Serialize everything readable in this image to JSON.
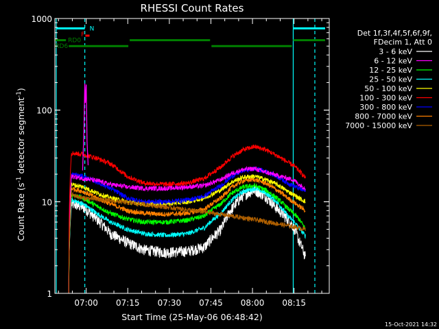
{
  "chart_data": {
    "type": "line",
    "title": "RHESSI Count Rates",
    "xlabel": "Start Time (25-May-06 06:48:42)",
    "ylabel": "Count Rate (s",
    "ylabel_sup": "-1",
    "ylabel_tail": " detector segment",
    "ylabel_sup2": "-1",
    "ylabel_close": ")",
    "x_unit": "minutes after 06:48:42",
    "xlim": [
      0,
      99
    ],
    "yscale": "log",
    "ylim": [
      1,
      1000
    ],
    "x_ticks": [
      {
        "t": 11.3,
        "label": "07:00"
      },
      {
        "t": 26.3,
        "label": "07:15"
      },
      {
        "t": 41.3,
        "label": "07:30"
      },
      {
        "t": 56.3,
        "label": "07:45"
      },
      {
        "t": 71.3,
        "label": "08:00"
      },
      {
        "t": 86.3,
        "label": "08:15"
      }
    ],
    "y_ticks": [
      {
        "v": 1,
        "label": "1"
      },
      {
        "v": 10,
        "label": "10"
      },
      {
        "v": 100,
        "label": "100"
      },
      {
        "v": 1000,
        "label": "1000"
      }
    ],
    "legend": {
      "header1": "Det 1f,3f,4f,5f,6f,9f,",
      "header2": "FDecim 1, Att 0",
      "placement": "right"
    },
    "series": [
      {
        "name": "3 - 6 keV",
        "color": "#ffffff",
        "start": 5.0,
        "end": 90.5,
        "t": [
          5,
          6,
          10,
          15,
          20,
          26,
          32,
          40,
          48,
          54,
          60,
          64,
          68,
          72,
          76,
          80,
          84,
          86,
          88,
          90.5
        ],
        "v": [
          1.2,
          9.5,
          8.8,
          6.5,
          4.5,
          3.6,
          3.0,
          2.8,
          2.9,
          3.2,
          5.0,
          8.5,
          11.8,
          13.5,
          11.5,
          8.5,
          6.4,
          5.4,
          3.8,
          2.4
        ]
      },
      {
        "name": "6 - 12 keV",
        "color": "#ff00ff",
        "start": 5.0,
        "end": 90.5,
        "t": [
          5,
          6,
          10,
          15,
          20,
          26,
          32,
          40,
          48,
          54,
          60,
          64,
          68,
          72,
          76,
          80,
          84,
          86,
          88,
          90.5
        ],
        "v": [
          1.0,
          19,
          18,
          17,
          15.5,
          14.5,
          14,
          14,
          14.5,
          15,
          17.5,
          20.5,
          22.5,
          23,
          21,
          19.5,
          18,
          17.5,
          15.5,
          14
        ]
      },
      {
        "name": "12 - 25 keV",
        "color": "#00ff00",
        "start": 5.0,
        "end": 90.5,
        "t": [
          5,
          6,
          10,
          15,
          20,
          26,
          32,
          40,
          48,
          54,
          60,
          64,
          68,
          72,
          76,
          80,
          84,
          86,
          88,
          90.5
        ],
        "v": [
          1.0,
          12,
          11,
          9,
          7.5,
          6.5,
          6,
          6,
          6.3,
          7,
          9.5,
          12.5,
          14.5,
          15,
          13.5,
          11,
          8.5,
          7.5,
          6.5,
          5
        ]
      },
      {
        "name": "25 - 50 keV",
        "color": "#00ffff",
        "start": 5.0,
        "end": 90.5,
        "t": [
          5,
          6,
          10,
          15,
          20,
          26,
          32,
          40,
          48,
          54,
          60,
          64,
          68,
          72,
          76,
          80,
          84,
          86,
          88,
          90.5
        ],
        "v": [
          1.0,
          10.5,
          9.5,
          7.5,
          6.0,
          5.0,
          4.5,
          4.3,
          4.5,
          5.2,
          7.5,
          10.5,
          13,
          14,
          12.5,
          10,
          7,
          6.2,
          5.2,
          4.2
        ]
      },
      {
        "name": "50 - 100 keV",
        "color": "#ffff00",
        "start": 5.0,
        "end": 90.5,
        "t": [
          5,
          6,
          10,
          15,
          20,
          26,
          32,
          40,
          48,
          54,
          60,
          64,
          68,
          72,
          76,
          80,
          84,
          86,
          88,
          90.5
        ],
        "v": [
          1.0,
          15.5,
          14.5,
          12.5,
          11,
          10,
          9.5,
          9.5,
          10,
          11,
          13.5,
          16.5,
          18.5,
          19,
          17.5,
          15.5,
          13,
          12,
          11,
          10
        ]
      },
      {
        "name": "100 - 300 keV",
        "color": "#ff0000",
        "start": 5.0,
        "end": 90.5,
        "t": [
          5,
          6,
          10,
          15,
          20,
          26,
          32,
          40,
          48,
          54,
          60,
          64,
          68,
          72,
          76,
          80,
          84,
          86,
          88,
          90.5
        ],
        "v": [
          1.0,
          34,
          33,
          30,
          26,
          19,
          16,
          15.5,
          16,
          18,
          24,
          31,
          37,
          40,
          37,
          32,
          27,
          25,
          22,
          18
        ]
      },
      {
        "name": "300 - 800 keV",
        "color": "#0000ff",
        "start": 5.0,
        "end": 90.5,
        "t": [
          5,
          6,
          10,
          15,
          20,
          26,
          32,
          40,
          48,
          54,
          60,
          64,
          68,
          72,
          76,
          80,
          84,
          86,
          88,
          90.5
        ],
        "v": [
          1.0,
          20,
          19,
          16.5,
          14,
          11,
          10,
          10,
          10.5,
          11.5,
          15,
          19,
          22,
          23,
          21.5,
          19,
          16,
          15,
          14,
          13
        ]
      },
      {
        "name": "800 - 7000 keV",
        "color": "#ff8000",
        "start": 5.0,
        "end": 90.5,
        "t": [
          5,
          6,
          10,
          15,
          20,
          26,
          32,
          40,
          48,
          54,
          60,
          64,
          68,
          72,
          76,
          80,
          84,
          86,
          88,
          90.5
        ],
        "v": [
          1.0,
          14,
          13,
          11,
          9.5,
          8,
          7.5,
          7.3,
          7.5,
          8.3,
          11,
          14.5,
          17,
          17.5,
          16,
          13.5,
          11,
          10,
          9,
          8
        ]
      },
      {
        "name": "7000 - 15000 keV",
        "color": "#b06000",
        "start": 5.0,
        "end": 90.5,
        "t": [
          5,
          6,
          10,
          90.5
        ],
        "v": [
          1.0,
          12,
          11,
          5
        ]
      }
    ],
    "flare_spike": {
      "t": [
        10.0,
        10.5,
        10.8,
        11.0,
        11.3,
        11.6,
        12.0
      ],
      "v": [
        22,
        60,
        195,
        120,
        190,
        45,
        25
      ],
      "color": "#ff00ff"
    },
    "dashed_markers": [
      {
        "t": 10.8
      },
      {
        "t": 93.8
      }
    ],
    "solid_markers": [
      {
        "t": 0.5
      },
      {
        "t": 86.0
      }
    ],
    "flags": [
      {
        "label": "N",
        "color": "#00ffff",
        "level": 780,
        "segments": [
          [
            0.5,
            10.8
          ],
          [
            86.0,
            97.5
          ]
        ]
      },
      {
        "label": "F",
        "color": "#ff0000",
        "level": 650,
        "segments": [
          [
            11.0,
            12.5
          ]
        ]
      },
      {
        "label": "RD0",
        "color": "#008000",
        "level": 580,
        "segments": [
          [
            0,
            4.0
          ],
          [
            27.0,
            56.0
          ],
          [
            86.0,
            97.5
          ]
        ]
      },
      {
        "label": "RD6",
        "color": "#008000",
        "level": 500,
        "segments": [
          [
            5.0,
            26.5
          ],
          [
            56.5,
            85.5
          ]
        ]
      }
    ]
  },
  "footer_timestamp": "15-Oct-2021 14:32"
}
